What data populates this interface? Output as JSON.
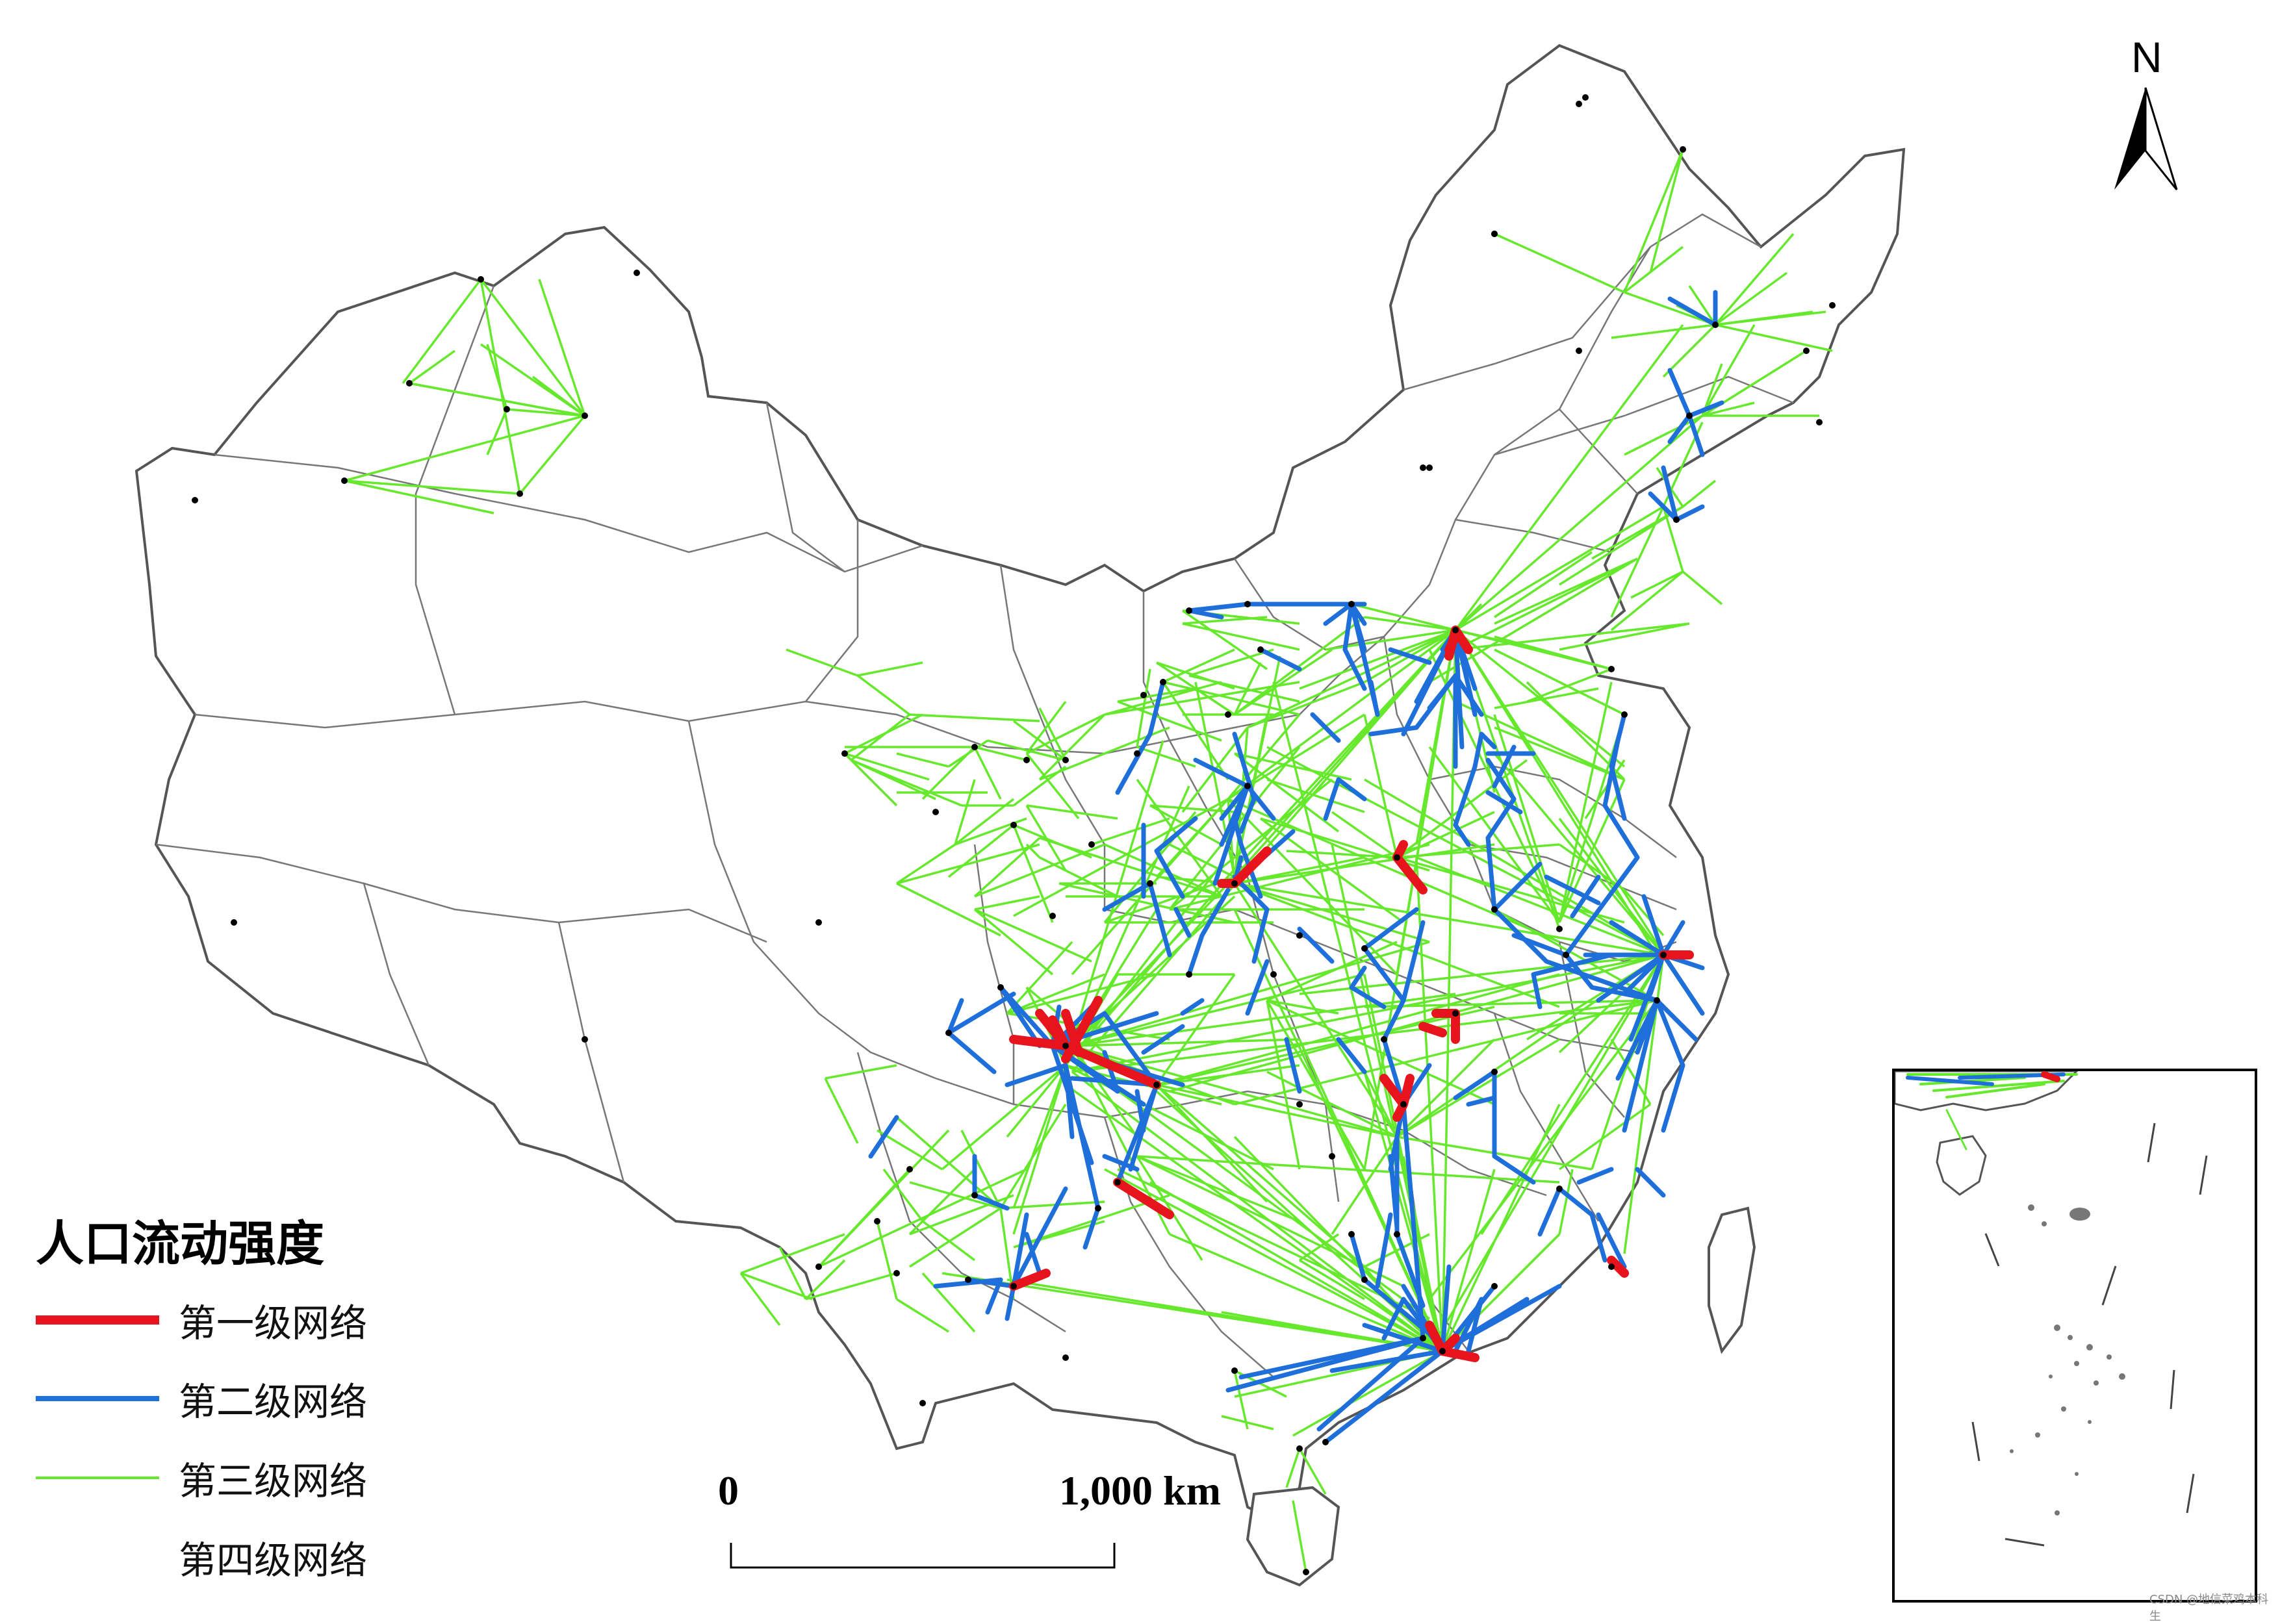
{
  "legend": {
    "title": "人口流动强度",
    "items": [
      {
        "label": "第一级网络",
        "color": "#e8141d",
        "width": 14
      },
      {
        "label": "第二级网络",
        "color": "#1e6fd9",
        "width": 8
      },
      {
        "label": "第三级网络",
        "color": "#66e82c",
        "width": 4
      },
      {
        "label": "第四级网络",
        "color": "",
        "width": 0
      }
    ]
  },
  "scale_bar": {
    "zero_label": "0",
    "end_label": "1,000 km"
  },
  "north_arrow": {
    "label": "N",
    "icon": "north-arrow-icon"
  },
  "credit": "CSDN @地信菜鸡本科生",
  "colors": {
    "boundary": "#555555",
    "province": "#666666",
    "level1": "#e8141d",
    "level2": "#1e6fd9",
    "level3": "#66e82c",
    "node": "#000000"
  }
}
